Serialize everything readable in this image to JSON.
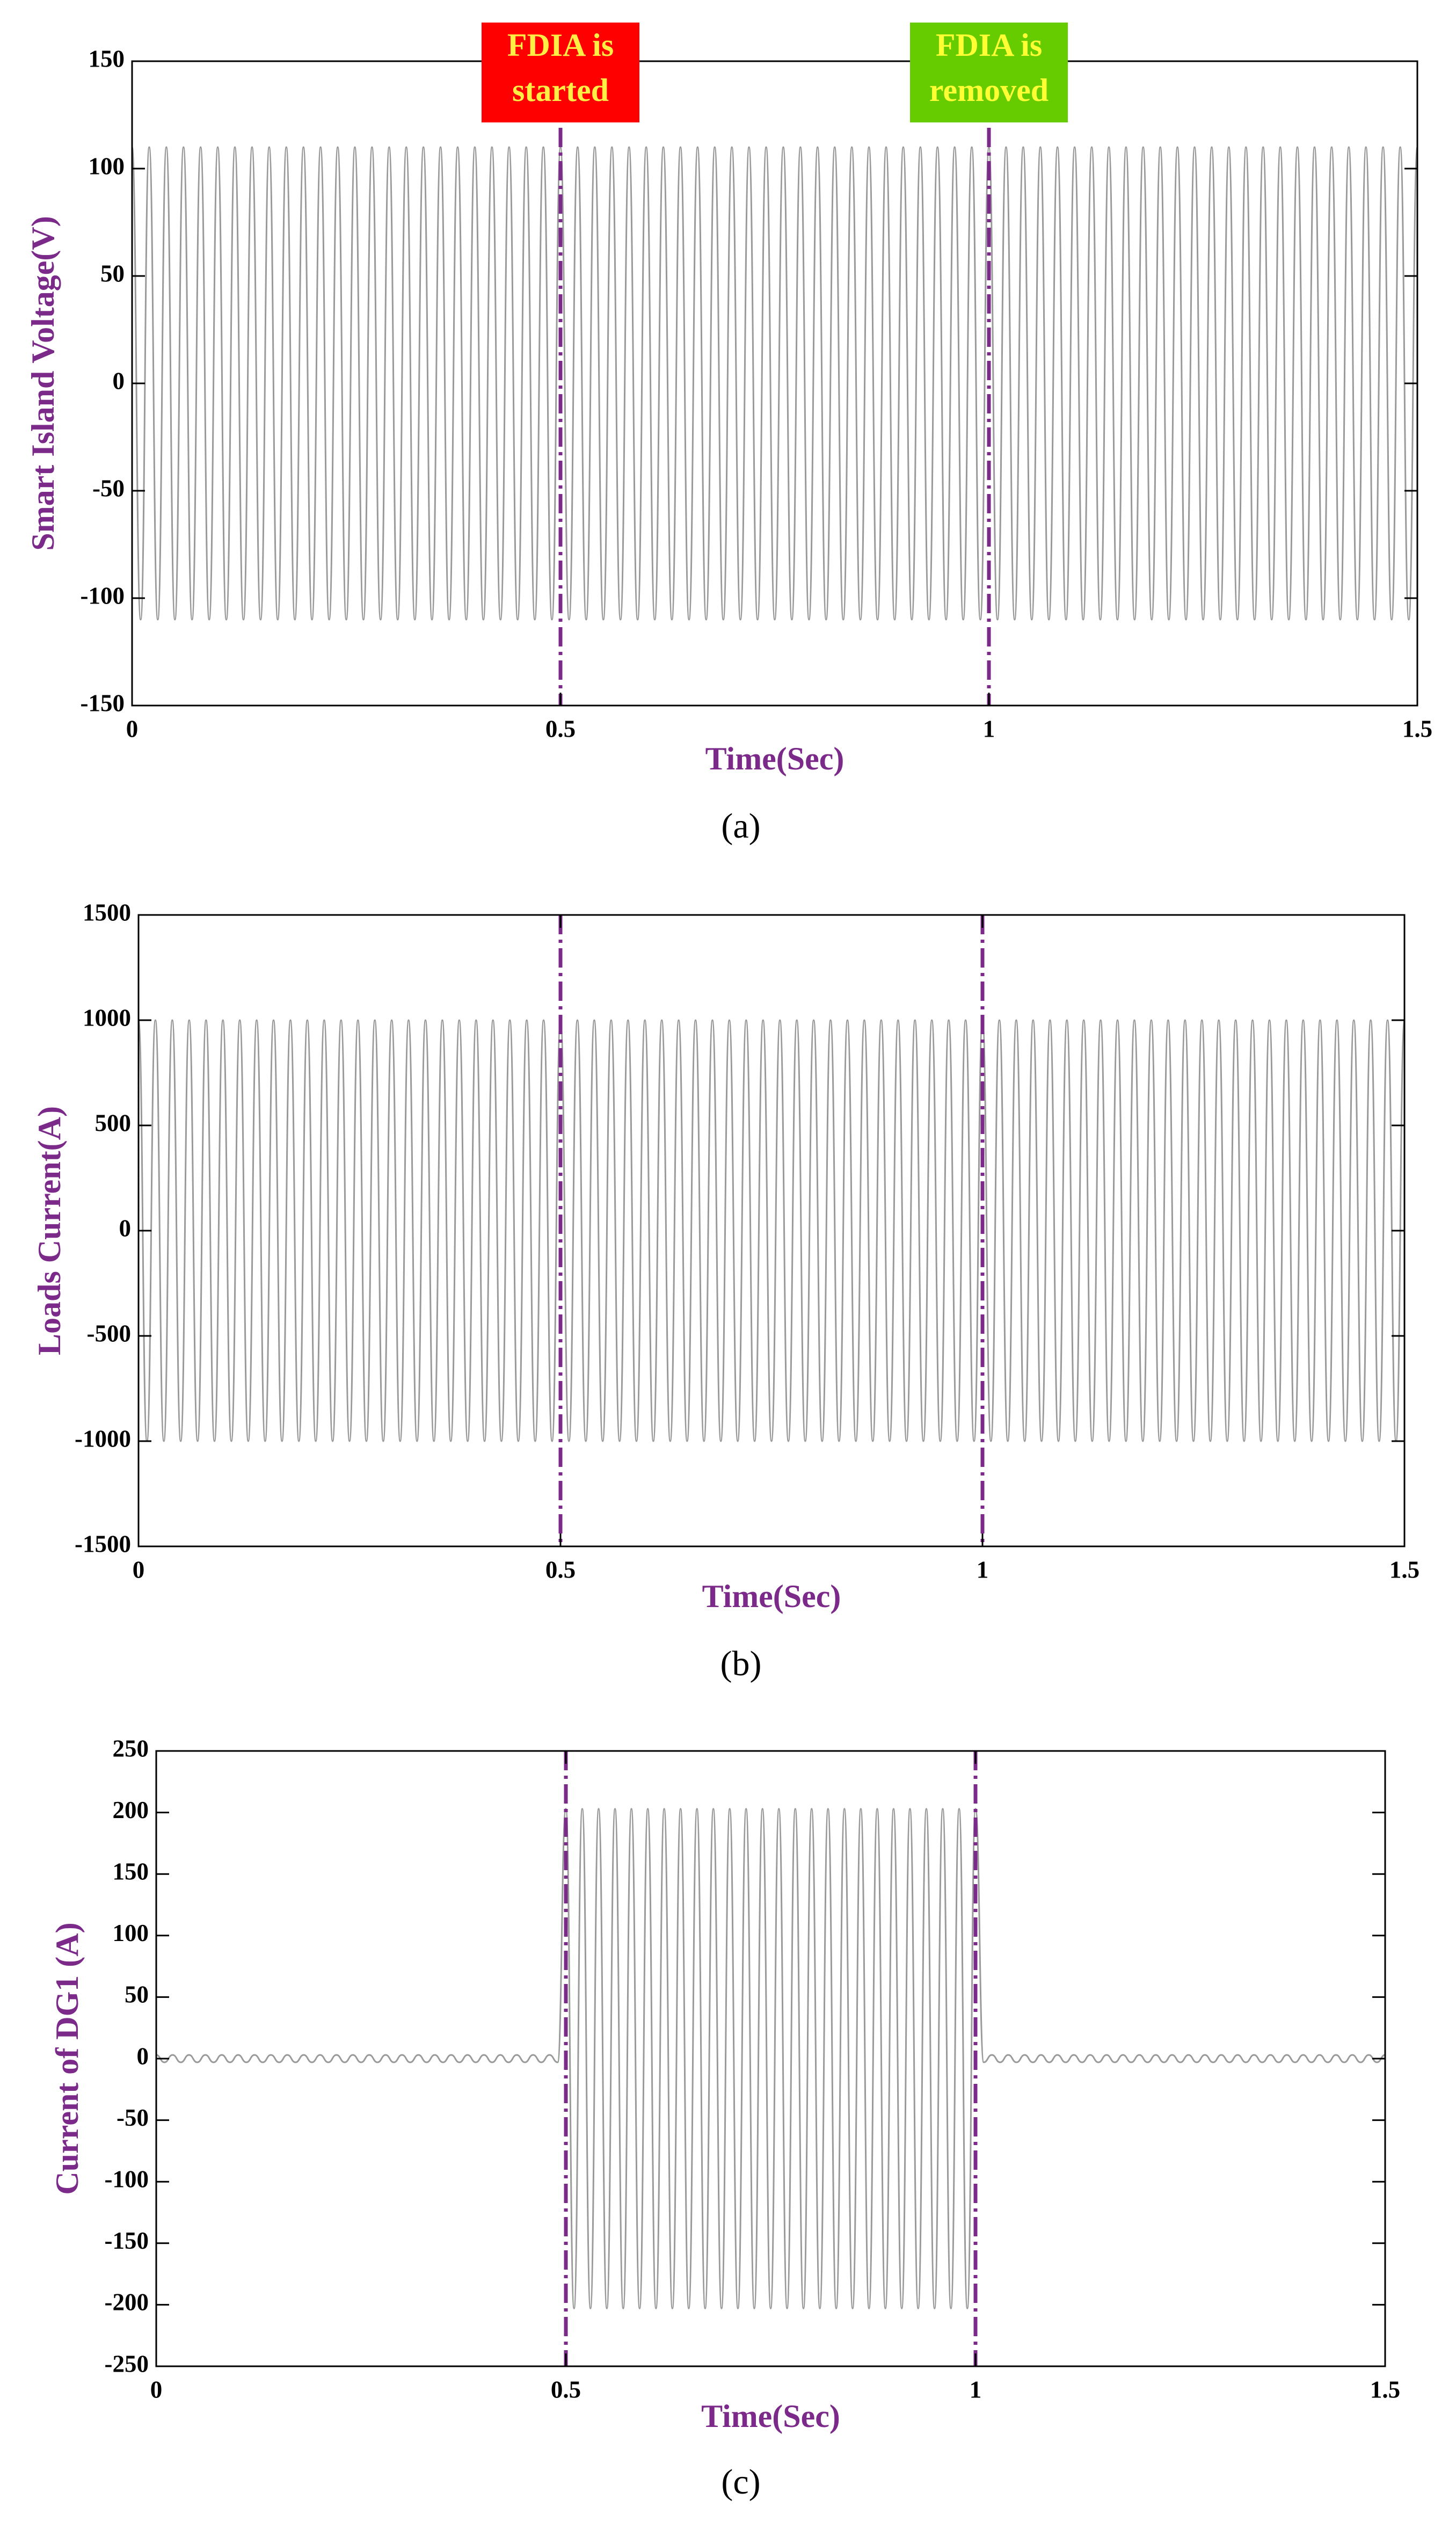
{
  "chart_data": [
    {
      "type": "line",
      "caption": "(a)",
      "xlabel": "Time(Sec)",
      "ylabel": "Smart Island Voltage(V)",
      "xlim": [
        0,
        1.5
      ],
      "xticks": [
        0,
        0.5,
        1,
        1.5
      ],
      "ylim": [
        -150,
        150
      ],
      "yticks": [
        -150,
        -100,
        -50,
        0,
        50,
        100,
        150
      ],
      "vlines": [
        0.5,
        1
      ],
      "vline_color": "#7b2a8a",
      "annotations": [
        {
          "lines": [
            "FDIA is",
            "started"
          ],
          "x": 0.5,
          "color": "#ff0000",
          "text_color": "#ffee44"
        },
        {
          "lines": [
            "FDIA is",
            "removed"
          ],
          "x": 1,
          "color": "#66cc00",
          "text_color": "#ffff33"
        }
      ],
      "series": [
        {
          "color": "#9a9a9a",
          "x": [
            0,
            0.01,
            0.02,
            0.03,
            0.04,
            0.05,
            0.06,
            0.07,
            0.08,
            0.09,
            0.1,
            0.11,
            0.12,
            0.13,
            0.14,
            0.15,
            0.16,
            0.17,
            0.18,
            0.19,
            0.2,
            0.21,
            0.22,
            0.23,
            0.24,
            0.25,
            0.26,
            0.27,
            0.28,
            0.29,
            0.3,
            0.31,
            0.32,
            0.33,
            0.34,
            0.35,
            0.36,
            0.37,
            0.38,
            0.39,
            0.4,
            0.41,
            0.42,
            0.43,
            0.44,
            0.45,
            0.46,
            0.47,
            0.48,
            0.49,
            0.5,
            0.51,
            0.52,
            0.53,
            0.54,
            0.55,
            0.56,
            0.57,
            0.58,
            0.59,
            0.6,
            0.61,
            0.62,
            0.63,
            0.64,
            0.65,
            0.66,
            0.67,
            0.68,
            0.69,
            0.7,
            0.71,
            0.72,
            0.73,
            0.74,
            0.75,
            0.76,
            0.77,
            0.78,
            0.79,
            0.8,
            0.81,
            0.82,
            0.83,
            0.84,
            0.85,
            0.86,
            0.87,
            0.88,
            0.89,
            0.9,
            0.91,
            0.92,
            0.93,
            0.94,
            0.95,
            0.96,
            0.97,
            0.98,
            0.99,
            1,
            1.01,
            1.02,
            1.03,
            1.04,
            1.05,
            1.06,
            1.07,
            1.08,
            1.09,
            1.1,
            1.11,
            1.12,
            1.13,
            1.14,
            1.15,
            1.16,
            1.17,
            1.18,
            1.19,
            1.2,
            1.21,
            1.22,
            1.23,
            1.24,
            1.25,
            1.26,
            1.27,
            1.28,
            1.29,
            1.3,
            1.31,
            1.32,
            1.33,
            1.34,
            1.35,
            1.36,
            1.37,
            1.38,
            1.39,
            1.4,
            1.41,
            1.42,
            1.43,
            1.44,
            1.45,
            1.46,
            1.47,
            1.48,
            1.49,
            1.5
          ],
          "values": [
            110,
            -110,
            110,
            -110,
            110,
            -110,
            110,
            -110,
            110,
            -110,
            110,
            -110,
            110,
            -110,
            110,
            -110,
            110,
            -110,
            110,
            -110,
            110,
            -110,
            110,
            -110,
            110,
            -110,
            110,
            -110,
            110,
            -110,
            110,
            -110,
            110,
            -110,
            110,
            -110,
            110,
            -110,
            110,
            -110,
            110,
            -110,
            110,
            -110,
            110,
            -110,
            110,
            -110,
            110,
            -110,
            110,
            -110,
            110,
            -110,
            110,
            -110,
            110,
            -110,
            110,
            -110,
            110,
            -110,
            110,
            -110,
            110,
            -110,
            110,
            -110,
            110,
            -110,
            110,
            -110,
            110,
            -110,
            110,
            -110,
            110,
            -110,
            110,
            -110,
            110,
            -110,
            110,
            -110,
            110,
            -110,
            110,
            -110,
            110,
            -110,
            110,
            -110,
            110,
            -110,
            110,
            -110,
            110,
            -110,
            110,
            -110,
            110,
            -110,
            110,
            -110,
            110,
            -110,
            110,
            -110,
            110,
            -110,
            110,
            -110,
            110,
            -110,
            110,
            -110,
            110,
            -110,
            110,
            -110,
            110,
            -110,
            110,
            -110,
            110,
            -110,
            110,
            -110,
            110,
            -110,
            110,
            -110,
            110,
            -110,
            110,
            -110,
            110,
            -110,
            110,
            -110,
            110,
            -110,
            110,
            -110,
            110,
            -110,
            110,
            -110,
            110,
            -110,
            110
          ]
        }
      ]
    },
    {
      "type": "line",
      "caption": "(b)",
      "xlabel": "Time(Sec)",
      "ylabel": "Loads Current(A)",
      "xlim": [
        0,
        1.5
      ],
      "xticks": [
        0,
        0.5,
        1,
        1.5
      ],
      "ylim": [
        -1500,
        1500
      ],
      "yticks": [
        -1500,
        -1000,
        -500,
        0,
        500,
        1000,
        1500
      ],
      "vlines": [
        0.5,
        1
      ],
      "vline_color": "#7b2a8a",
      "series": [
        {
          "color": "#9a9a9a",
          "x": [
            0,
            0.01,
            0.02,
            0.03,
            0.04,
            0.05,
            0.06,
            0.07,
            0.08,
            0.09,
            0.1,
            0.11,
            0.12,
            0.13,
            0.14,
            0.15,
            0.16,
            0.17,
            0.18,
            0.19,
            0.2,
            0.21,
            0.22,
            0.23,
            0.24,
            0.25,
            0.26,
            0.27,
            0.28,
            0.29,
            0.3,
            0.31,
            0.32,
            0.33,
            0.34,
            0.35,
            0.36,
            0.37,
            0.38,
            0.39,
            0.4,
            0.41,
            0.42,
            0.43,
            0.44,
            0.45,
            0.46,
            0.47,
            0.48,
            0.49,
            0.5,
            0.51,
            0.52,
            0.53,
            0.54,
            0.55,
            0.56,
            0.57,
            0.58,
            0.59,
            0.6,
            0.61,
            0.62,
            0.63,
            0.64,
            0.65,
            0.66,
            0.67,
            0.68,
            0.69,
            0.7,
            0.71,
            0.72,
            0.73,
            0.74,
            0.75,
            0.76,
            0.77,
            0.78,
            0.79,
            0.8,
            0.81,
            0.82,
            0.83,
            0.84,
            0.85,
            0.86,
            0.87,
            0.88,
            0.89,
            0.9,
            0.91,
            0.92,
            0.93,
            0.94,
            0.95,
            0.96,
            0.97,
            0.98,
            0.99,
            1,
            1.01,
            1.02,
            1.03,
            1.04,
            1.05,
            1.06,
            1.07,
            1.08,
            1.09,
            1.1,
            1.11,
            1.12,
            1.13,
            1.14,
            1.15,
            1.16,
            1.17,
            1.18,
            1.19,
            1.2,
            1.21,
            1.22,
            1.23,
            1.24,
            1.25,
            1.26,
            1.27,
            1.28,
            1.29,
            1.3,
            1.31,
            1.32,
            1.33,
            1.34,
            1.35,
            1.36,
            1.37,
            1.38,
            1.39,
            1.4,
            1.41,
            1.42,
            1.43,
            1.44,
            1.45,
            1.46,
            1.47,
            1.48,
            1.49,
            1.5
          ],
          "values": [
            1000,
            -1000,
            1000,
            -1000,
            1000,
            -1000,
            1000,
            -1000,
            1000,
            -1000,
            1000,
            -1000,
            1000,
            -1000,
            1000,
            -1000,
            1000,
            -1000,
            1000,
            -1000,
            1000,
            -1000,
            1000,
            -1000,
            1000,
            -1000,
            1000,
            -1000,
            1000,
            -1000,
            1000,
            -1000,
            1000,
            -1000,
            1000,
            -1000,
            1000,
            -1000,
            1000,
            -1000,
            1000,
            -1000,
            1000,
            -1000,
            1000,
            -1000,
            1000,
            -1000,
            1000,
            -1000,
            1000,
            -1000,
            1000,
            -1000,
            1000,
            -1000,
            1000,
            -1000,
            1000,
            -1000,
            1000,
            -1000,
            1000,
            -1000,
            1000,
            -1000,
            1000,
            -1000,
            1000,
            -1000,
            1000,
            -1000,
            1000,
            -1000,
            1000,
            -1000,
            1000,
            -1000,
            1000,
            -1000,
            1000,
            -1000,
            1000,
            -1000,
            1000,
            -1000,
            1000,
            -1000,
            1000,
            -1000,
            1000,
            -1000,
            1000,
            -1000,
            1000,
            -1000,
            1000,
            -1000,
            1000,
            -1000,
            1000,
            -1000,
            1000,
            -1000,
            1000,
            -1000,
            1000,
            -1000,
            1000,
            -1000,
            1000,
            -1000,
            1000,
            -1000,
            1000,
            -1000,
            1000,
            -1000,
            1000,
            -1000,
            1000,
            -1000,
            1000,
            -1000,
            1000,
            -1000,
            1000,
            -1000,
            1000,
            -1000,
            1000,
            -1000,
            1000,
            -1000,
            1000,
            -1000,
            1000,
            -1000,
            1000,
            -1000,
            1000,
            -1000,
            1000,
            -1000,
            1000,
            -1000,
            1000,
            -1000,
            1000,
            -1000,
            1000
          ]
        }
      ]
    },
    {
      "type": "line",
      "caption": "(c)",
      "xlabel": "Time(Sec)",
      "ylabel": "Current of DG1 (A)",
      "xlim": [
        0,
        1.5
      ],
      "xticks": [
        0,
        0.5,
        1,
        1.5
      ],
      "ylim": [
        -250,
        250
      ],
      "yticks": [
        -250,
        -200,
        -150,
        -100,
        -50,
        0,
        50,
        100,
        150,
        200,
        250
      ],
      "vlines": [
        0.5,
        1
      ],
      "vline_color": "#7b2a8a",
      "series": [
        {
          "color": "#9a9a9a",
          "x": [
            0,
            0.01,
            0.02,
            0.03,
            0.04,
            0.05,
            0.06,
            0.07,
            0.08,
            0.09,
            0.1,
            0.11,
            0.12,
            0.13,
            0.14,
            0.15,
            0.16,
            0.17,
            0.18,
            0.19,
            0.2,
            0.21,
            0.22,
            0.23,
            0.24,
            0.25,
            0.26,
            0.27,
            0.28,
            0.29,
            0.3,
            0.31,
            0.32,
            0.33,
            0.34,
            0.35,
            0.36,
            0.37,
            0.38,
            0.39,
            0.4,
            0.41,
            0.42,
            0.43,
            0.44,
            0.45,
            0.46,
            0.47,
            0.48,
            0.49,
            0.5,
            0.51,
            0.52,
            0.53,
            0.54,
            0.55,
            0.56,
            0.57,
            0.58,
            0.59,
            0.6,
            0.61,
            0.62,
            0.63,
            0.64,
            0.65,
            0.66,
            0.67,
            0.68,
            0.69,
            0.7,
            0.71,
            0.72,
            0.73,
            0.74,
            0.75,
            0.76,
            0.77,
            0.78,
            0.79,
            0.8,
            0.81,
            0.82,
            0.83,
            0.84,
            0.85,
            0.86,
            0.87,
            0.88,
            0.89,
            0.9,
            0.91,
            0.92,
            0.93,
            0.94,
            0.95,
            0.96,
            0.97,
            0.98,
            0.99,
            1,
            1.01,
            1.02,
            1.03,
            1.04,
            1.05,
            1.06,
            1.07,
            1.08,
            1.09,
            1.1,
            1.11,
            1.12,
            1.13,
            1.14,
            1.15,
            1.16,
            1.17,
            1.18,
            1.19,
            1.2,
            1.21,
            1.22,
            1.23,
            1.24,
            1.25,
            1.26,
            1.27,
            1.28,
            1.29,
            1.3,
            1.31,
            1.32,
            1.33,
            1.34,
            1.35,
            1.36,
            1.37,
            1.38,
            1.39,
            1.4,
            1.41,
            1.42,
            1.43,
            1.44,
            1.45,
            1.46,
            1.47,
            1.48,
            1.49,
            1.5
          ],
          "values": [
            3,
            -3,
            3,
            -3,
            3,
            -3,
            3,
            -3,
            3,
            -3,
            3,
            -3,
            3,
            -3,
            3,
            -3,
            3,
            -3,
            3,
            -3,
            3,
            -3,
            3,
            -3,
            3,
            -3,
            3,
            -3,
            3,
            -3,
            3,
            -3,
            3,
            -3,
            3,
            -3,
            3,
            -3,
            3,
            -3,
            3,
            -3,
            3,
            -3,
            3,
            -3,
            3,
            -3,
            3,
            -3,
            203,
            -203,
            203,
            -203,
            203,
            -203,
            203,
            -203,
            203,
            -203,
            203,
            -203,
            203,
            -203,
            203,
            -203,
            203,
            -203,
            203,
            -203,
            203,
            -203,
            203,
            -203,
            203,
            -203,
            203,
            -203,
            203,
            -203,
            203,
            -203,
            203,
            -203,
            203,
            -203,
            203,
            -203,
            203,
            -203,
            203,
            -203,
            203,
            -203,
            203,
            -203,
            203,
            -203,
            203,
            -203,
            203,
            -3,
            3,
            -3,
            3,
            -3,
            3,
            -3,
            3,
            -3,
            3,
            -3,
            3,
            -3,
            3,
            -3,
            3,
            -3,
            3,
            -3,
            3,
            -3,
            3,
            -3,
            3,
            -3,
            3,
            -3,
            3,
            -3,
            3,
            -3,
            3,
            -3,
            3,
            -3,
            3,
            -3,
            3,
            -3,
            3,
            -3,
            3,
            -3,
            3,
            -3,
            3,
            -3,
            3,
            -3,
            3
          ]
        }
      ]
    }
  ]
}
